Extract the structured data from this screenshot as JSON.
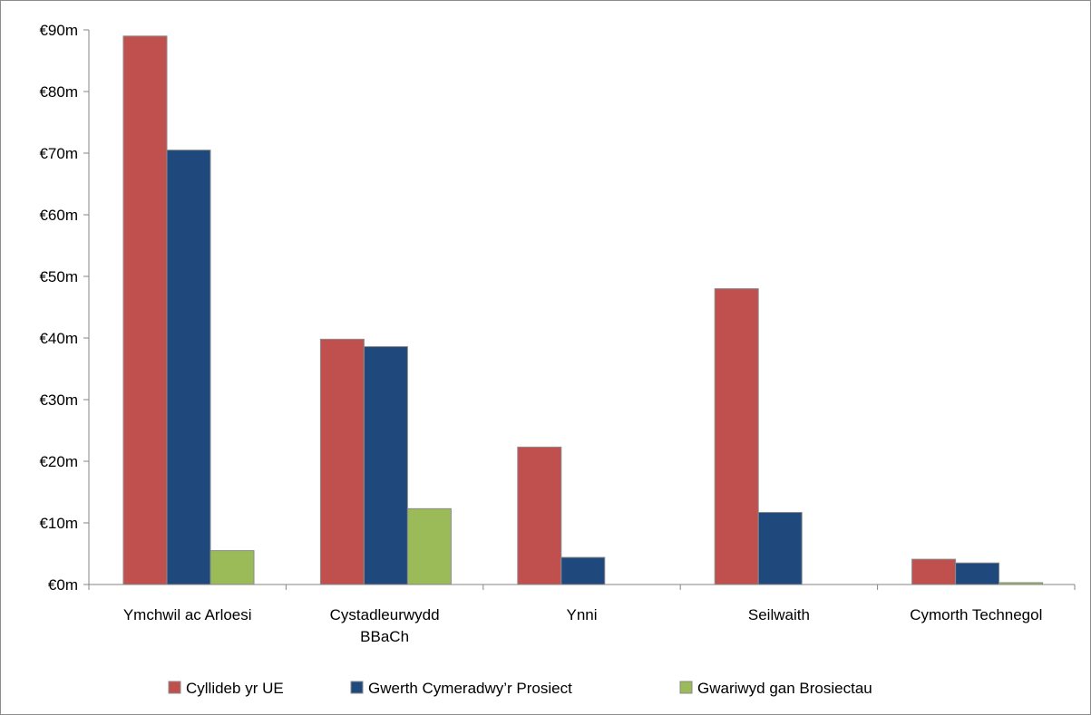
{
  "chart_data": {
    "type": "bar",
    "categories": [
      [
        "Ymchwil ac Arloesi"
      ],
      [
        "Cystadleurwydd",
        "BBaCh"
      ],
      [
        "Ynni"
      ],
      [
        "Seilwaith"
      ],
      [
        "Cymorth Technegol"
      ]
    ],
    "series": [
      {
        "name": "Cyllideb yr UE",
        "color": "#c0504d",
        "values": [
          89,
          39.8,
          22.3,
          48,
          4.1
        ]
      },
      {
        "name": "Gwerth Cymeradwy’r Prosiect",
        "color": "#1f497d",
        "values": [
          70.5,
          38.6,
          4.4,
          11.7,
          3.5
        ]
      },
      {
        "name": "Gwariwyd gan Brosiectau",
        "color": "#9bbb59",
        "values": [
          5.5,
          12.3,
          0,
          0,
          0.3
        ]
      }
    ],
    "y_ticks": [
      "€0m",
      "€10m",
      "€20m",
      "€30m",
      "€40m",
      "€50m",
      "€60m",
      "€70m",
      "€80m",
      "€90m"
    ],
    "ylim": [
      0,
      90
    ],
    "grid": false,
    "legend_position": "bottom"
  }
}
